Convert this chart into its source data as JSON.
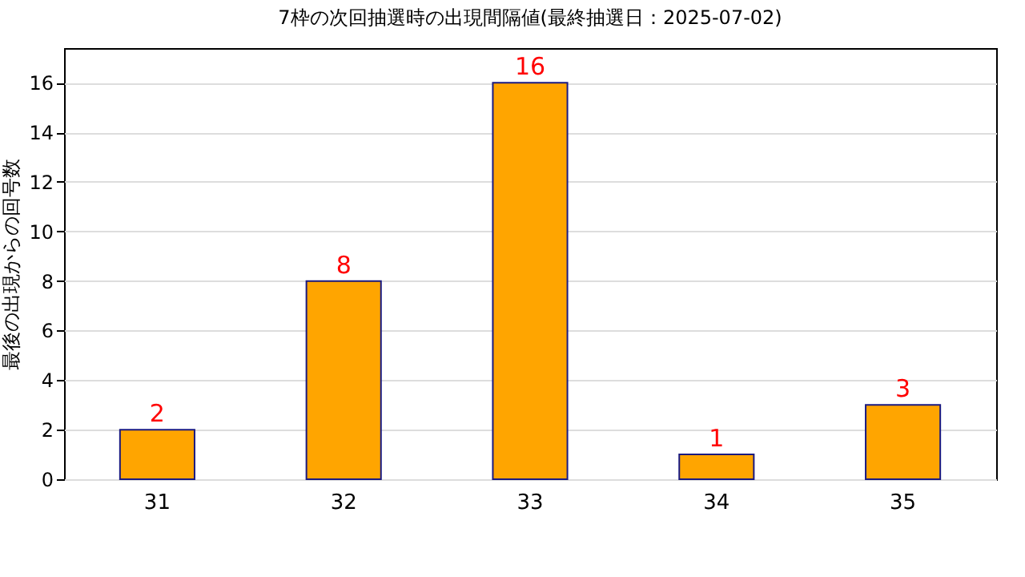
{
  "chart_data": {
    "type": "bar",
    "title": "7枠の次回抽選時の出現間隔値(最終抽選日：2025-07-02)",
    "ylabel": "最後の出現からの回号数",
    "categories": [
      "31",
      "32",
      "33",
      "34",
      "35"
    ],
    "values": [
      2,
      8,
      16,
      1,
      3
    ],
    "color": "#ffa500",
    "ylim": [
      0,
      17.4
    ],
    "yticks": [
      0,
      2,
      4,
      6,
      8,
      10,
      12,
      14,
      16
    ],
    "grid": "y",
    "data_labels": true
  }
}
